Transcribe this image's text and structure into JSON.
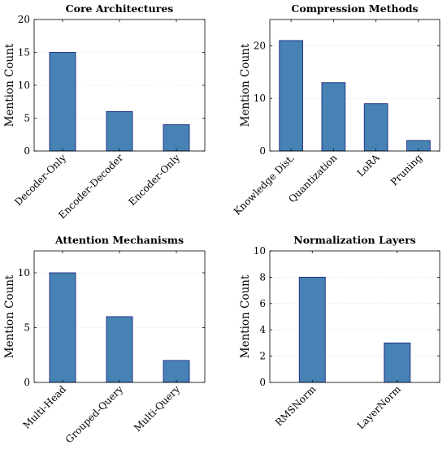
{
  "colors": {
    "bar_fill": "#4682b4",
    "bar_stroke": "#1a2a80"
  },
  "chart_data": [
    {
      "type": "bar",
      "title": "Core Architectures",
      "ylabel": "Mention Count",
      "xlabel": "",
      "categories": [
        "Decoder-Only",
        "Encoder-Decoder",
        "Encoder-Only"
      ],
      "values": [
        15,
        6,
        4
      ],
      "ylim": [
        0,
        20
      ],
      "yticks": [
        0,
        5,
        10,
        15,
        20
      ],
      "grid": true
    },
    {
      "type": "bar",
      "title": "Compression Methods",
      "ylabel": "Mention Count",
      "xlabel": "",
      "categories": [
        "Knowledge Dist.",
        "Quantization",
        "LoRA",
        "Pruning"
      ],
      "values": [
        21,
        13,
        9,
        2
      ],
      "ylim": [
        0,
        25
      ],
      "yticks": [
        0,
        10,
        20
      ],
      "grid": true
    },
    {
      "type": "bar",
      "title": "Attention Mechanisms",
      "ylabel": "Mention Count",
      "xlabel": "",
      "categories": [
        "Multi-Head",
        "Grouped-Query",
        "Multi-Query"
      ],
      "values": [
        10,
        6,
        2
      ],
      "ylim": [
        0,
        12
      ],
      "yticks": [
        0,
        5,
        10
      ],
      "grid": true
    },
    {
      "type": "bar",
      "title": "Normalization Layers",
      "ylabel": "Mention Count",
      "xlabel": "",
      "categories": [
        "RMSNorm",
        "LayerNorm"
      ],
      "values": [
        8,
        3
      ],
      "ylim": [
        0,
        10
      ],
      "yticks": [
        0,
        2,
        4,
        6,
        8,
        10
      ],
      "grid": true
    }
  ]
}
